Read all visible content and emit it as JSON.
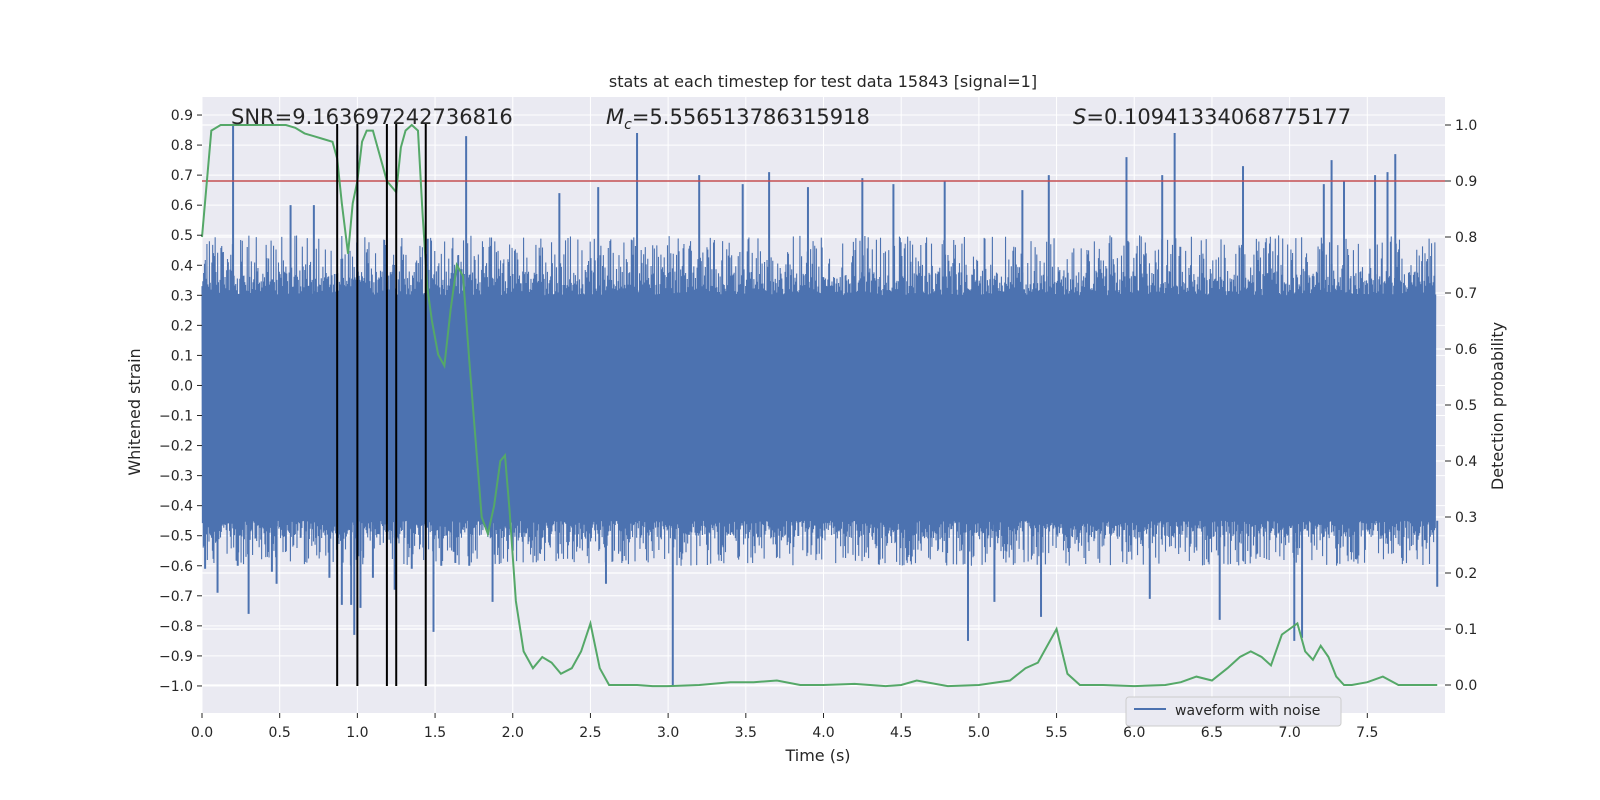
{
  "chart_data": {
    "type": "line",
    "title": "stats at each timestep for test data 15843 [signal=1]",
    "xlabel": "Time (s)",
    "ylabel_left": "Whitened strain",
    "ylabel_right": "Detection probability",
    "xlim": [
      0.0,
      8.0
    ],
    "ylim_left": [
      -1.09,
      0.96
    ],
    "ylim_right": [
      -0.05,
      1.05
    ],
    "x_ticks": [
      0.0,
      0.5,
      1.0,
      1.5,
      2.0,
      2.5,
      3.0,
      3.5,
      4.0,
      4.5,
      5.0,
      5.5,
      6.0,
      6.5,
      7.0,
      7.5
    ],
    "x_tick_labels": [
      "0.0",
      "0.5",
      "1.0",
      "1.5",
      "2.0",
      "2.5",
      "3.0",
      "3.5",
      "4.0",
      "4.5",
      "5.0",
      "5.5",
      "6.0",
      "6.5",
      "7.0",
      "7.5"
    ],
    "y_left_ticks": [
      0.9,
      0.8,
      0.7,
      0.6,
      0.5,
      0.4,
      0.3,
      0.2,
      0.1,
      0.0,
      -0.1,
      -0.2,
      -0.3,
      -0.4,
      -0.5,
      -0.6,
      -0.7,
      -0.8,
      -0.9,
      -1.0
    ],
    "y_left_tick_labels": [
      "0.9",
      "0.8",
      "0.7",
      "0.6",
      "0.5",
      "0.4",
      "0.3",
      "0.2",
      "0.1",
      "0.0",
      "−0.1",
      "−0.2",
      "−0.3",
      "−0.4",
      "−0.5",
      "−0.6",
      "−0.7",
      "−0.8",
      "−0.9",
      "−1.0"
    ],
    "y_right_ticks": [
      1.0,
      0.9,
      0.8,
      0.7,
      0.6,
      0.5,
      0.4,
      0.3,
      0.2,
      0.1,
      0.0
    ],
    "y_right_tick_labels": [
      "1.0",
      "0.9",
      "0.8",
      "0.7",
      "0.6",
      "0.5",
      "0.4",
      "0.3",
      "0.2",
      "0.1",
      "0.0"
    ],
    "grid": true,
    "annotations": {
      "snr": "SNR=9.163697242736816",
      "mc_symbol": "M",
      "mc_subscript": "c",
      "mc_value": "=5.556513786315918",
      "s_symbol": "S",
      "s_value": "=0.10941334068775177"
    },
    "legend": {
      "entries": [
        "waveform with noise"
      ],
      "position": "lower-right"
    },
    "threshold_line": {
      "axis": "right",
      "value": 0.9
    },
    "vertical_markers_x": [
      0.87,
      1.0,
      1.19,
      1.25,
      1.44
    ],
    "vertical_markers_range": [
      -1.0,
      0.87
    ],
    "waveform": {
      "name": "waveform with noise",
      "axis": "left",
      "band_core": [
        -0.45,
        0.3
      ],
      "envelope_typical": [
        -0.6,
        0.5
      ],
      "spikes": [
        {
          "x": 0.02,
          "y": -0.61
        },
        {
          "x": 0.07,
          "y": -0.55
        },
        {
          "x": 0.08,
          "y": 0.43
        },
        {
          "x": 0.1,
          "y": -0.69
        },
        {
          "x": 0.2,
          "y": 0.87
        },
        {
          "x": 0.23,
          "y": -0.6
        },
        {
          "x": 0.3,
          "y": -0.76
        },
        {
          "x": 0.45,
          "y": -0.62
        },
        {
          "x": 0.48,
          "y": -0.66
        },
        {
          "x": 0.57,
          "y": 0.6
        },
        {
          "x": 0.72,
          "y": 0.6
        },
        {
          "x": 0.82,
          "y": -0.64
        },
        {
          "x": 0.9,
          "y": -0.73
        },
        {
          "x": 0.96,
          "y": -0.73
        },
        {
          "x": 0.98,
          "y": -0.83
        },
        {
          "x": 1.0,
          "y": 0.8
        },
        {
          "x": 1.02,
          "y": -0.74
        },
        {
          "x": 1.1,
          "y": -0.64
        },
        {
          "x": 1.24,
          "y": -0.68
        },
        {
          "x": 1.35,
          "y": -0.61
        },
        {
          "x": 1.49,
          "y": -0.82
        },
        {
          "x": 1.54,
          "y": -0.6
        },
        {
          "x": 1.7,
          "y": 0.83
        },
        {
          "x": 1.72,
          "y": -0.6
        },
        {
          "x": 1.87,
          "y": -0.72
        },
        {
          "x": 2.0,
          "y": -0.55
        },
        {
          "x": 2.3,
          "y": 0.64
        },
        {
          "x": 2.55,
          "y": 0.66
        },
        {
          "x": 2.6,
          "y": -0.66
        },
        {
          "x": 2.8,
          "y": 0.84
        },
        {
          "x": 3.03,
          "y": -1.0
        },
        {
          "x": 3.2,
          "y": 0.7
        },
        {
          "x": 3.48,
          "y": 0.67
        },
        {
          "x": 3.65,
          "y": 0.71
        },
        {
          "x": 3.9,
          "y": 0.66
        },
        {
          "x": 4.25,
          "y": 0.69
        },
        {
          "x": 4.45,
          "y": 0.67
        },
        {
          "x": 4.78,
          "y": 0.68
        },
        {
          "x": 4.93,
          "y": -0.85
        },
        {
          "x": 5.1,
          "y": -0.72
        },
        {
          "x": 5.28,
          "y": 0.65
        },
        {
          "x": 5.4,
          "y": -0.77
        },
        {
          "x": 5.45,
          "y": 0.7
        },
        {
          "x": 5.95,
          "y": 0.76
        },
        {
          "x": 6.1,
          "y": -0.71
        },
        {
          "x": 6.18,
          "y": 0.7
        },
        {
          "x": 6.26,
          "y": 0.84
        },
        {
          "x": 6.55,
          "y": -0.78
        },
        {
          "x": 6.7,
          "y": 0.73
        },
        {
          "x": 7.03,
          "y": -0.85
        },
        {
          "x": 7.08,
          "y": -0.84
        },
        {
          "x": 7.22,
          "y": 0.67
        },
        {
          "x": 7.27,
          "y": 0.75
        },
        {
          "x": 7.35,
          "y": 0.68
        },
        {
          "x": 7.55,
          "y": 0.7
        },
        {
          "x": 7.63,
          "y": 0.71
        },
        {
          "x": 7.68,
          "y": 0.77
        },
        {
          "x": 7.95,
          "y": -0.67
        }
      ]
    },
    "probability": {
      "axis": "right",
      "x": [
        0.0,
        0.06,
        0.12,
        0.18,
        0.24,
        0.3,
        0.36,
        0.42,
        0.48,
        0.54,
        0.6,
        0.66,
        0.72,
        0.78,
        0.84,
        0.87,
        0.9,
        0.94,
        0.97,
        1.0,
        1.03,
        1.06,
        1.1,
        1.13,
        1.16,
        1.19,
        1.22,
        1.25,
        1.28,
        1.31,
        1.35,
        1.39,
        1.42,
        1.45,
        1.48,
        1.52,
        1.56,
        1.6,
        1.64,
        1.68,
        1.72,
        1.76,
        1.8,
        1.84,
        1.88,
        1.92,
        1.95,
        1.98,
        2.02,
        2.07,
        2.13,
        2.19,
        2.25,
        2.31,
        2.38,
        2.44,
        2.5,
        2.56,
        2.62,
        2.7,
        2.8,
        2.9,
        3.0,
        3.2,
        3.4,
        3.55,
        3.7,
        3.85,
        4.0,
        4.2,
        4.4,
        4.5,
        4.6,
        4.8,
        5.0,
        5.1,
        5.2,
        5.3,
        5.38,
        5.5,
        5.57,
        5.65,
        5.8,
        6.0,
        6.2,
        6.3,
        6.4,
        6.5,
        6.6,
        6.68,
        6.75,
        6.82,
        6.88,
        6.95,
        7.0,
        7.05,
        7.1,
        7.15,
        7.2,
        7.25,
        7.3,
        7.35,
        7.4,
        7.5,
        7.6,
        7.7,
        7.8,
        7.9,
        7.95
      ],
      "y": [
        0.8,
        0.99,
        1.0,
        1.0,
        1.0,
        1.0,
        1.0,
        1.0,
        1.0,
        1.0,
        0.995,
        0.985,
        0.98,
        0.975,
        0.97,
        0.94,
        0.86,
        0.77,
        0.86,
        0.9,
        0.97,
        0.99,
        0.99,
        0.96,
        0.93,
        0.9,
        0.89,
        0.88,
        0.96,
        0.99,
        1.0,
        0.99,
        0.84,
        0.71,
        0.65,
        0.59,
        0.57,
        0.67,
        0.75,
        0.73,
        0.58,
        0.44,
        0.3,
        0.27,
        0.32,
        0.4,
        0.41,
        0.31,
        0.15,
        0.06,
        0.03,
        0.05,
        0.04,
        0.02,
        0.03,
        0.06,
        0.11,
        0.03,
        0.0,
        0.0,
        0.0,
        -0.002,
        -0.002,
        0.0,
        0.005,
        0.005,
        0.008,
        0.0,
        0.0,
        0.002,
        -0.002,
        0.0,
        0.008,
        -0.002,
        0.0,
        0.004,
        0.008,
        0.03,
        0.04,
        0.1,
        0.02,
        0.0,
        0.0,
        -0.002,
        0.0,
        0.005,
        0.015,
        0.008,
        0.03,
        0.05,
        0.06,
        0.05,
        0.035,
        0.09,
        0.1,
        0.11,
        0.06,
        0.045,
        0.07,
        0.05,
        0.015,
        0.0,
        0.0,
        0.005,
        0.015,
        0.0,
        0.0,
        0.0,
        0.0
      ]
    },
    "colors": {
      "background_plot": "#eaeaf2",
      "grid": "#ffffff",
      "waveform": "#4c72b0",
      "probability": "#55a868",
      "threshold": "#c44e52",
      "markers": "#000000",
      "text": "#262626"
    }
  }
}
